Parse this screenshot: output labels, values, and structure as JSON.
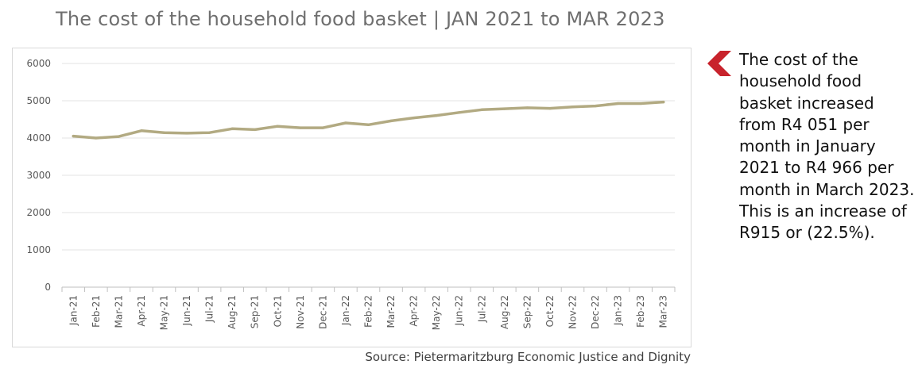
{
  "header": {
    "title": "The cost of the household food basket | JAN 2021 to MAR 2023"
  },
  "chart_data": {
    "type": "line",
    "title": "The cost of the household food basket | JAN 2021 to MAR 2023",
    "categories": [
      "Jan-21",
      "Feb-21",
      "Mar-21",
      "Apr-21",
      "May-21",
      "Jun-21",
      "Jul-21",
      "Aug-21",
      "Sep-21",
      "Oct-21",
      "Nov-21",
      "Dec-21",
      "Jan-22",
      "Feb-22",
      "Mar-22",
      "Apr-22",
      "May-22",
      "Jun-22",
      "Jul-22",
      "Aug-22",
      "Sep-22",
      "Oct-22",
      "Nov-22",
      "Dec-22",
      "Jan-23",
      "Feb-23",
      "Mar-23"
    ],
    "series": [
      {
        "values": [
          4051,
          4000,
          4040,
          4195,
          4145,
          4130,
          4145,
          4250,
          4225,
          4315,
          4275,
          4275,
          4405,
          4355,
          4460,
          4540,
          4605,
          4685,
          4760,
          4785,
          4810,
          4795,
          4835,
          4860,
          4925,
          4925,
          4966
        ]
      }
    ],
    "yticks": [
      0,
      1000,
      2000,
      3000,
      4000,
      5000,
      6000
    ],
    "ylim": [
      0,
      6000
    ],
    "grid": true,
    "legend": "none",
    "line_color": "#b2aa82",
    "grid_color": "#e3e3e3"
  },
  "annotation": {
    "text": "The cost of the household food basket increased from R4 051 per month in January 2021 to R4 966 per month in March 2023. This is an increase of R915 or (22.5%).",
    "icon": "chevron-left-icon",
    "icon_color": "#c8232c"
  },
  "footer": {
    "source": "Source: Pietermaritzburg Economic Justice and Dignity"
  }
}
